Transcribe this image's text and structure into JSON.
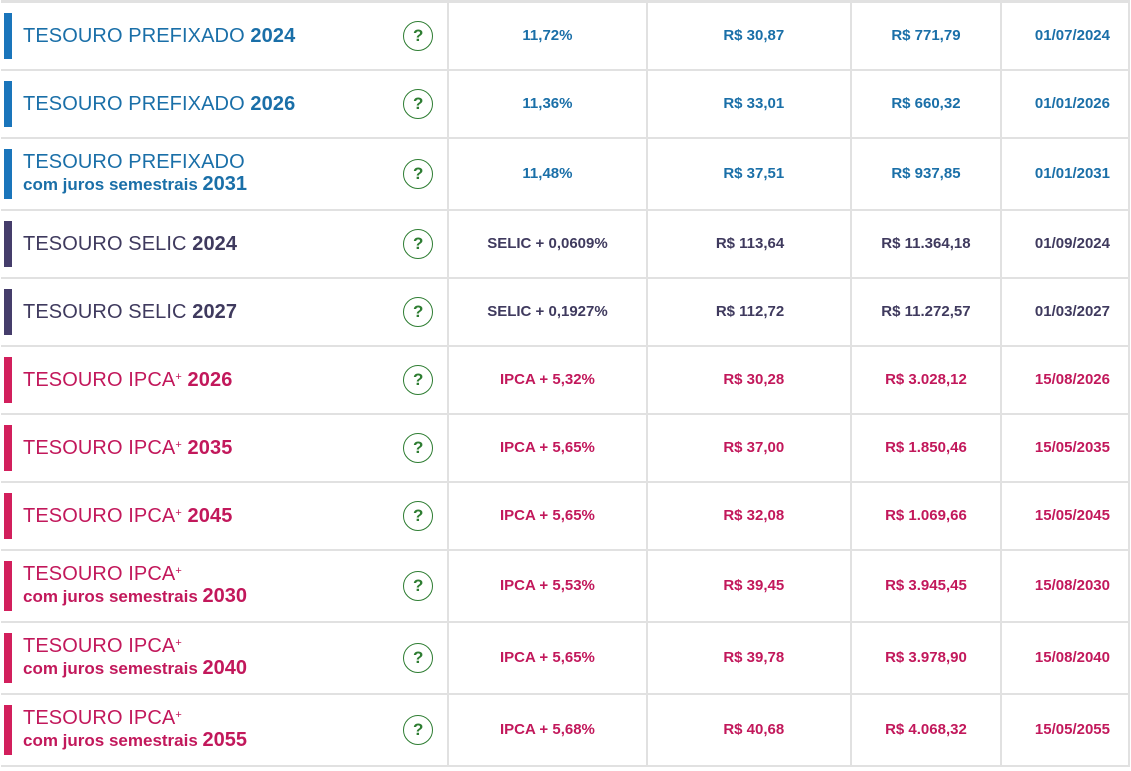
{
  "bonds": [
    {
      "type": "pref",
      "name": "TESOURO PREFIXADO",
      "plus": false,
      "sub": "",
      "year": "2024",
      "rate": "11,72%",
      "min": "R$ 30,87",
      "unit": "R$ 771,79",
      "maturity": "01/07/2024"
    },
    {
      "type": "pref",
      "name": "TESOURO PREFIXADO",
      "plus": false,
      "sub": "",
      "year": "2026",
      "rate": "11,36%",
      "min": "R$ 33,01",
      "unit": "R$ 660,32",
      "maturity": "01/01/2026"
    },
    {
      "type": "pref",
      "name": "TESOURO PREFIXADO",
      "plus": false,
      "sub": "com juros semestrais",
      "year": "2031",
      "rate": "11,48%",
      "min": "R$ 37,51",
      "unit": "R$ 937,85",
      "maturity": "01/01/2031"
    },
    {
      "type": "selic",
      "name": "TESOURO SELIC",
      "plus": false,
      "sub": "",
      "year": "2024",
      "rate": "SELIC + 0,0609%",
      "min": "R$ 113,64",
      "unit": "R$ 11.364,18",
      "maturity": "01/09/2024"
    },
    {
      "type": "selic",
      "name": "TESOURO SELIC",
      "plus": false,
      "sub": "",
      "year": "2027",
      "rate": "SELIC + 0,1927%",
      "min": "R$ 112,72",
      "unit": "R$ 11.272,57",
      "maturity": "01/03/2027"
    },
    {
      "type": "ipca",
      "name": "TESOURO IPCA",
      "plus": true,
      "sub": "",
      "year": "2026",
      "rate": "IPCA + 5,32%",
      "min": "R$ 30,28",
      "unit": "R$ 3.028,12",
      "maturity": "15/08/2026"
    },
    {
      "type": "ipca",
      "name": "TESOURO IPCA",
      "plus": true,
      "sub": "",
      "year": "2035",
      "rate": "IPCA + 5,65%",
      "min": "R$ 37,00",
      "unit": "R$ 1.850,46",
      "maturity": "15/05/2035"
    },
    {
      "type": "ipca",
      "name": "TESOURO IPCA",
      "plus": true,
      "sub": "",
      "year": "2045",
      "rate": "IPCA + 5,65%",
      "min": "R$ 32,08",
      "unit": "R$ 1.069,66",
      "maturity": "15/05/2045"
    },
    {
      "type": "ipca",
      "name": "TESOURO IPCA",
      "plus": true,
      "sub": "com juros semestrais",
      "year": "2030",
      "rate": "IPCA + 5,53%",
      "min": "R$ 39,45",
      "unit": "R$ 3.945,45",
      "maturity": "15/08/2030"
    },
    {
      "type": "ipca",
      "name": "TESOURO IPCA",
      "plus": true,
      "sub": "com juros semestrais",
      "year": "2040",
      "rate": "IPCA + 5,65%",
      "min": "R$ 39,78",
      "unit": "R$ 3.978,90",
      "maturity": "15/08/2040"
    },
    {
      "type": "ipca",
      "name": "TESOURO IPCA",
      "plus": true,
      "sub": "com juros semestrais",
      "year": "2055",
      "rate": "IPCA + 5,68%",
      "min": "R$ 40,68",
      "unit": "R$ 4.068,32",
      "maturity": "15/05/2055"
    }
  ],
  "help_glyph": "?",
  "plus_glyph": "+",
  "colors": {
    "prefixado": "#1a75bb",
    "selic": "#453d6b",
    "ipca": "#d21f5c",
    "help": "#2e7d32"
  },
  "icons": {
    "help": "question-circle-icon"
  }
}
